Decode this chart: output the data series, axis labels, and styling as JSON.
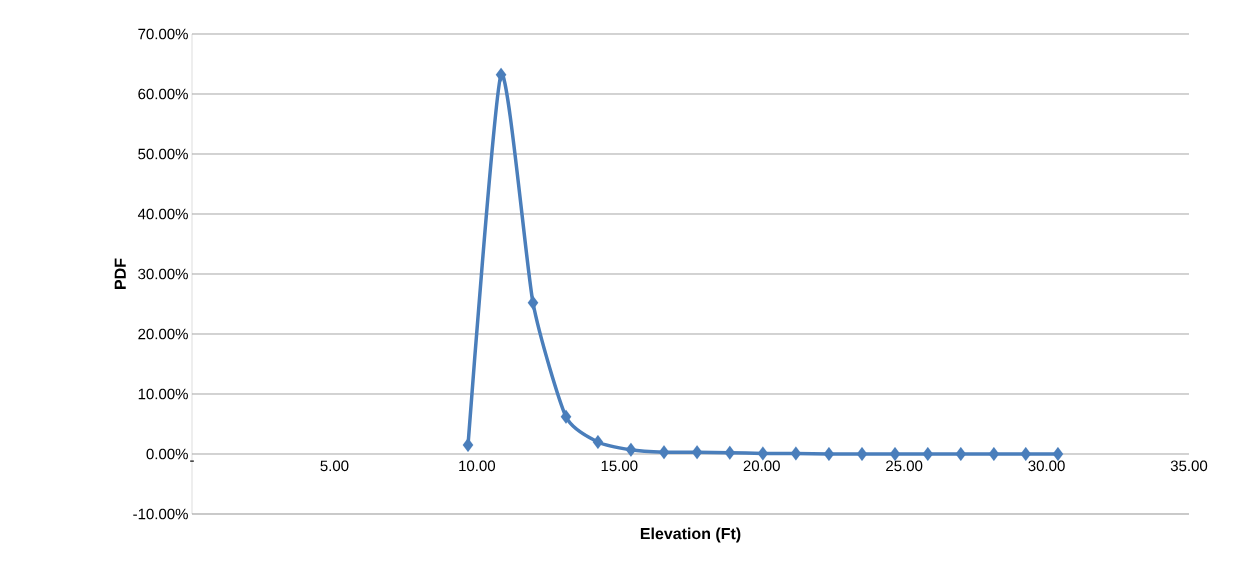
{
  "chart_data": {
    "type": "line",
    "xlabel": "Elevation (Ft)",
    "ylabel": "PDF",
    "x": [
      9.69,
      10.85,
      11.97,
      13.13,
      14.25,
      15.41,
      16.57,
      17.73,
      18.88,
      20.04,
      21.2,
      22.36,
      23.52,
      24.68,
      25.83,
      26.99,
      28.15,
      29.27,
      30.4
    ],
    "series": [
      {
        "color": "#4a7ebb",
        "values": [
          1.5,
          63.2,
          25.2,
          6.2,
          2.0,
          0.7,
          0.3,
          0.3,
          0.2,
          0.1,
          0.1,
          0,
          0,
          0,
          0,
          0,
          0,
          0,
          0
        ]
      }
    ],
    "xlim": [
      0,
      35
    ],
    "ylim": [
      -10,
      70
    ],
    "xticks": [
      {
        "value": 0,
        "label": "-"
      },
      {
        "value": 5,
        "label": "5.00"
      },
      {
        "value": 10,
        "label": "10.00"
      },
      {
        "value": 15,
        "label": "15.00"
      },
      {
        "value": 20,
        "label": "20.00"
      },
      {
        "value": 25,
        "label": "25.00"
      },
      {
        "value": 30,
        "label": "30.00"
      },
      {
        "value": 35,
        "label": "35.00"
      }
    ],
    "yticks": [
      {
        "value": -10,
        "label": "-10.00%"
      },
      {
        "value": 0,
        "label": "0.00%"
      },
      {
        "value": 10,
        "label": "10.00%"
      },
      {
        "value": 20,
        "label": "20.00%"
      },
      {
        "value": 30,
        "label": "30.00%"
      },
      {
        "value": 40,
        "label": "40.00%"
      },
      {
        "value": 50,
        "label": "50.00%"
      },
      {
        "value": 60,
        "label": "60.00%"
      },
      {
        "value": 70,
        "label": "70.00%"
      }
    ],
    "grid": "y",
    "marker": "diamond",
    "line_style": "solid"
  }
}
